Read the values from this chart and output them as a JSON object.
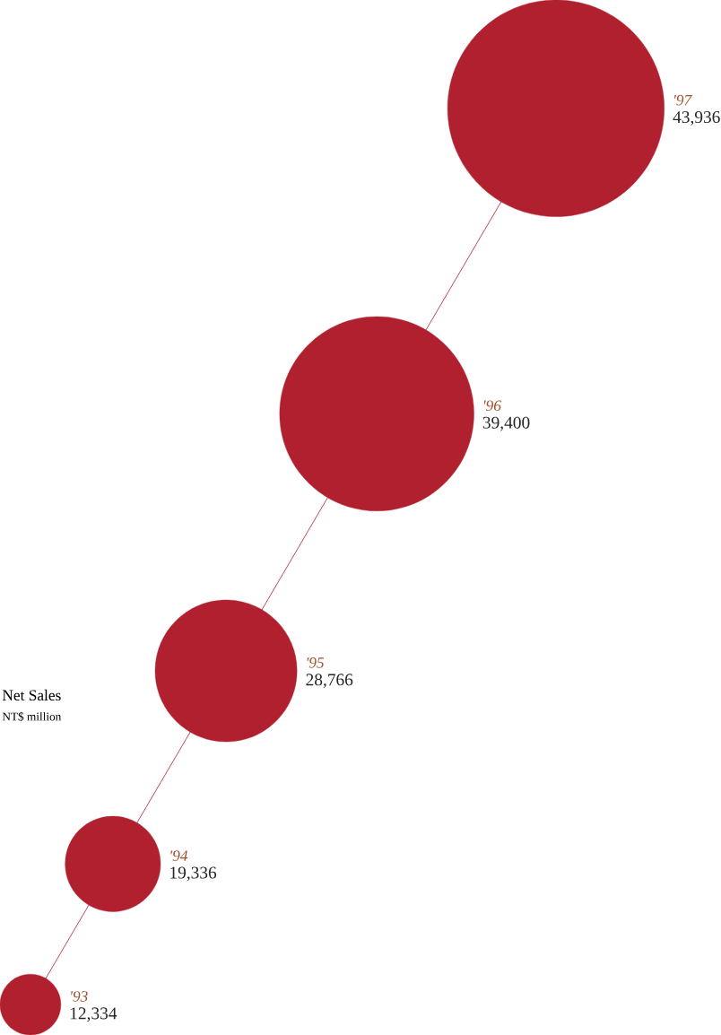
{
  "chart_data": {
    "type": "other",
    "title": "Net Sales",
    "subtitle": "NT$ million",
    "categories": [
      "'93",
      "'94",
      "'95",
      "'96",
      "'97"
    ],
    "values": [
      12334,
      19336,
      28766,
      39400,
      43936
    ],
    "value_labels": [
      "12,334",
      "19,336",
      "28,766",
      "39,400",
      "43,936"
    ],
    "color": "#b0202e"
  }
}
